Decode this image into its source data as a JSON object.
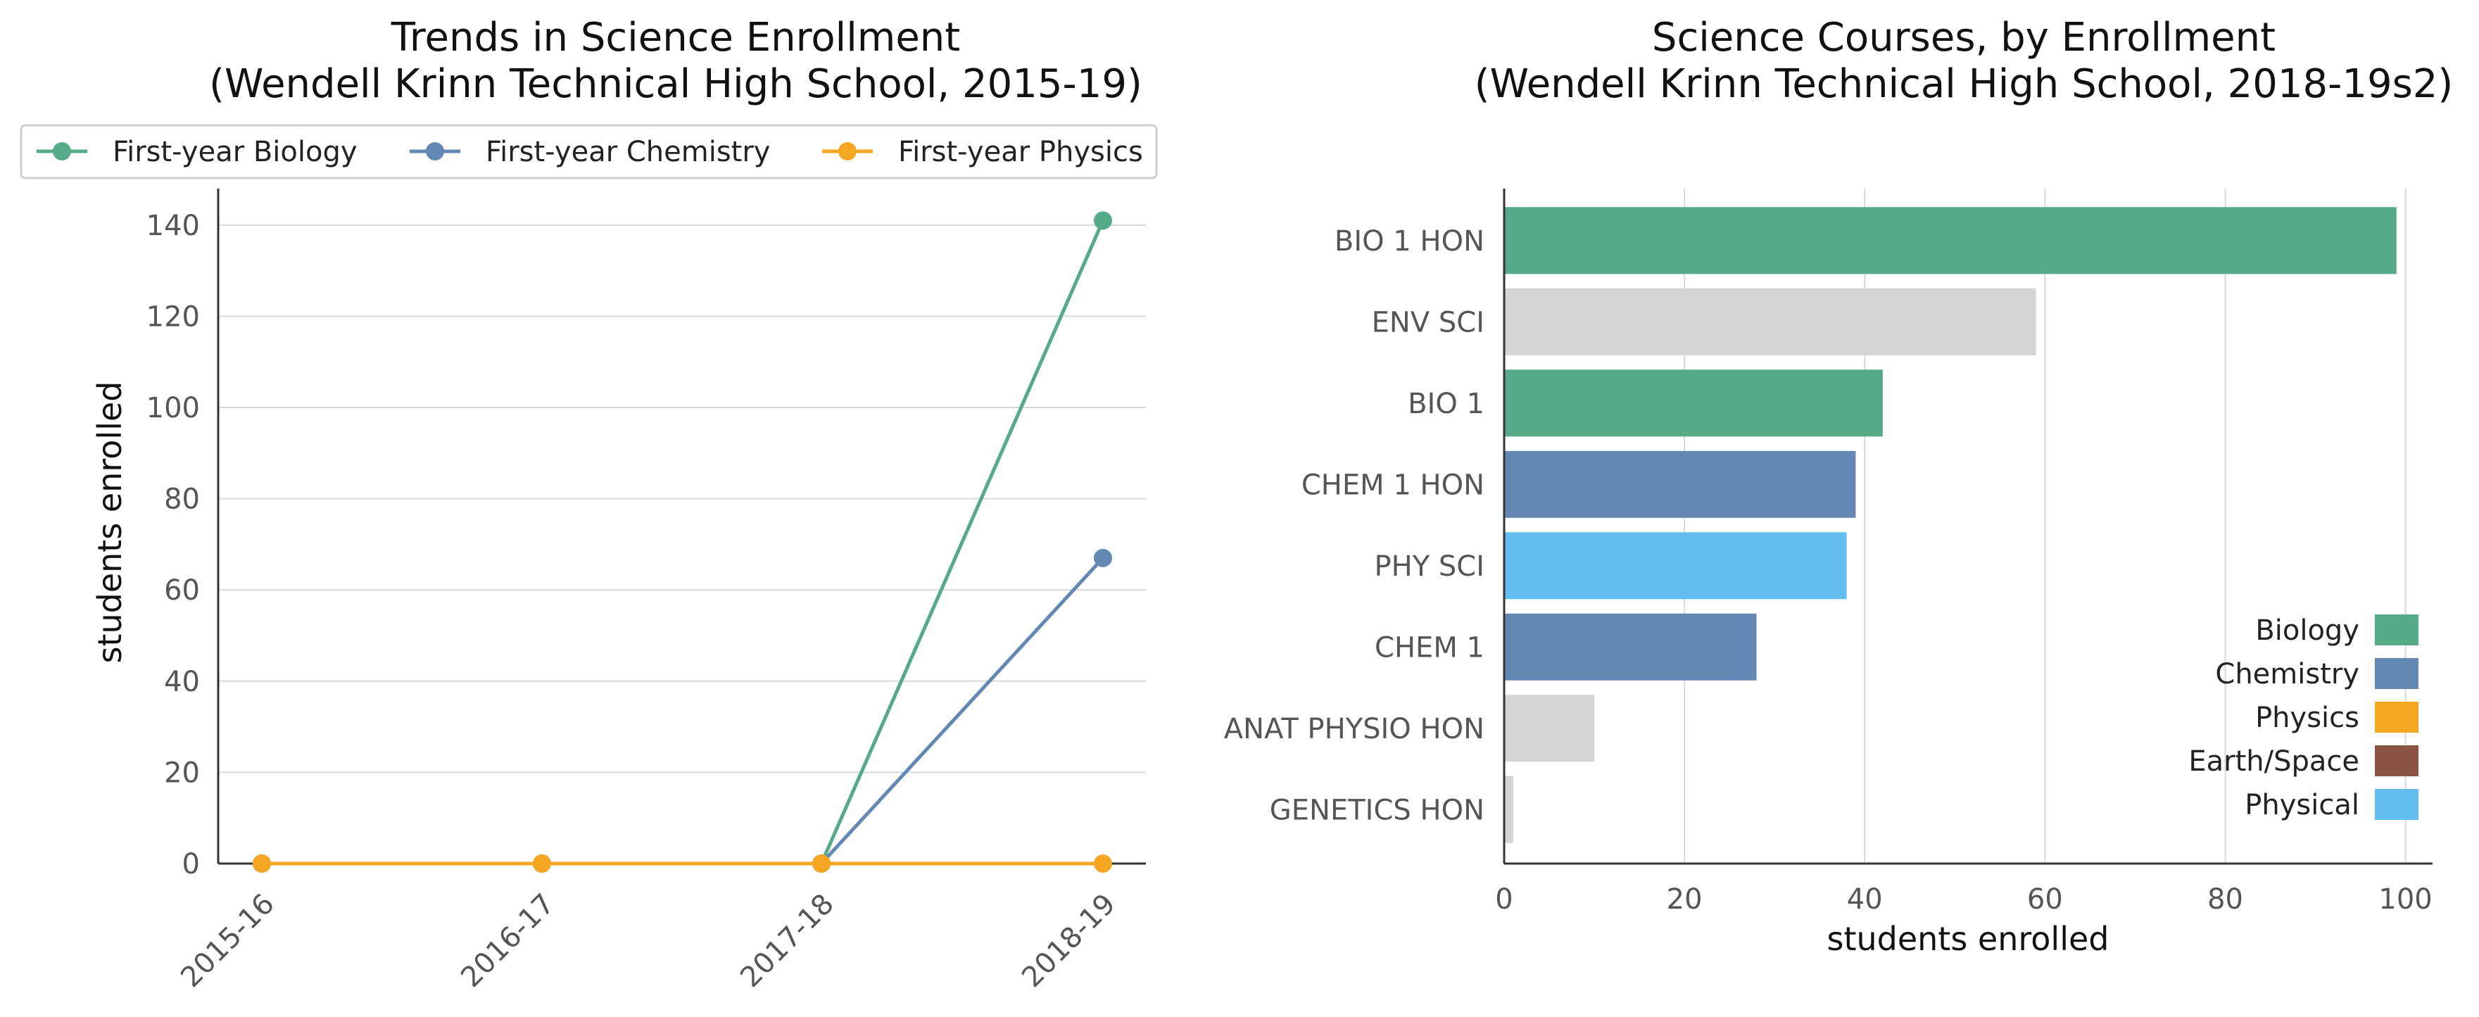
{
  "colors": {
    "biology": "#55aa88",
    "chemistry": "#6388b4",
    "physics": "#f5a623",
    "earth_space": "#8b5445",
    "physical": "#63bdee",
    "other": "#d4d4d4",
    "grid": "#d9d9d9",
    "axis": "#333333"
  },
  "chart_data": [
    {
      "type": "line",
      "title": [
        "Trends in Science Enrollment",
        "(Wendell Krinn Technical High School, 2015-19)"
      ],
      "xlabel": "",
      "ylabel": "students enrolled",
      "categories": [
        "2015-16",
        "2016-17",
        "2017-18",
        "2018-19"
      ],
      "ylim": [
        0,
        148
      ],
      "yticks": [
        0,
        20,
        40,
        60,
        80,
        100,
        120,
        140
      ],
      "grid": "horizontal",
      "legend_position": "top",
      "series": [
        {
          "name": "First-year Biology",
          "color_key": "biology",
          "values": [
            0,
            0,
            0,
            141
          ]
        },
        {
          "name": "First-year Chemistry",
          "color_key": "chemistry",
          "values": [
            0,
            0,
            0,
            67
          ]
        },
        {
          "name": "First-year Physics",
          "color_key": "physics",
          "values": [
            0,
            0,
            0,
            0
          ]
        }
      ]
    },
    {
      "type": "bar",
      "orientation": "horizontal",
      "title": [
        "Science Courses, by Enrollment",
        "(Wendell Krinn Technical High School, 2018-19s2)"
      ],
      "xlabel": "students enrolled",
      "ylabel": "",
      "xlim": [
        0,
        103
      ],
      "xticks": [
        0,
        20,
        40,
        60,
        80,
        100
      ],
      "grid": "vertical",
      "legend_position": "lower-right",
      "categories": [
        "BIO 1 HON",
        "ENV SCI",
        "BIO 1",
        "CHEM 1 HON",
        "PHY SCI",
        "CHEM 1",
        "ANAT PHYSIO HON",
        "GENETICS HON"
      ],
      "values": [
        99,
        59,
        42,
        39,
        38,
        28,
        10,
        1
      ],
      "bar_color_keys": [
        "biology",
        "other",
        "biology",
        "chemistry",
        "physical",
        "chemistry",
        "other",
        "other"
      ],
      "legend": [
        {
          "label": "Biology",
          "color_key": "biology"
        },
        {
          "label": "Chemistry",
          "color_key": "chemistry"
        },
        {
          "label": "Physics",
          "color_key": "physics"
        },
        {
          "label": "Earth/Space",
          "color_key": "earth_space"
        },
        {
          "label": "Physical",
          "color_key": "physical"
        }
      ]
    }
  ]
}
